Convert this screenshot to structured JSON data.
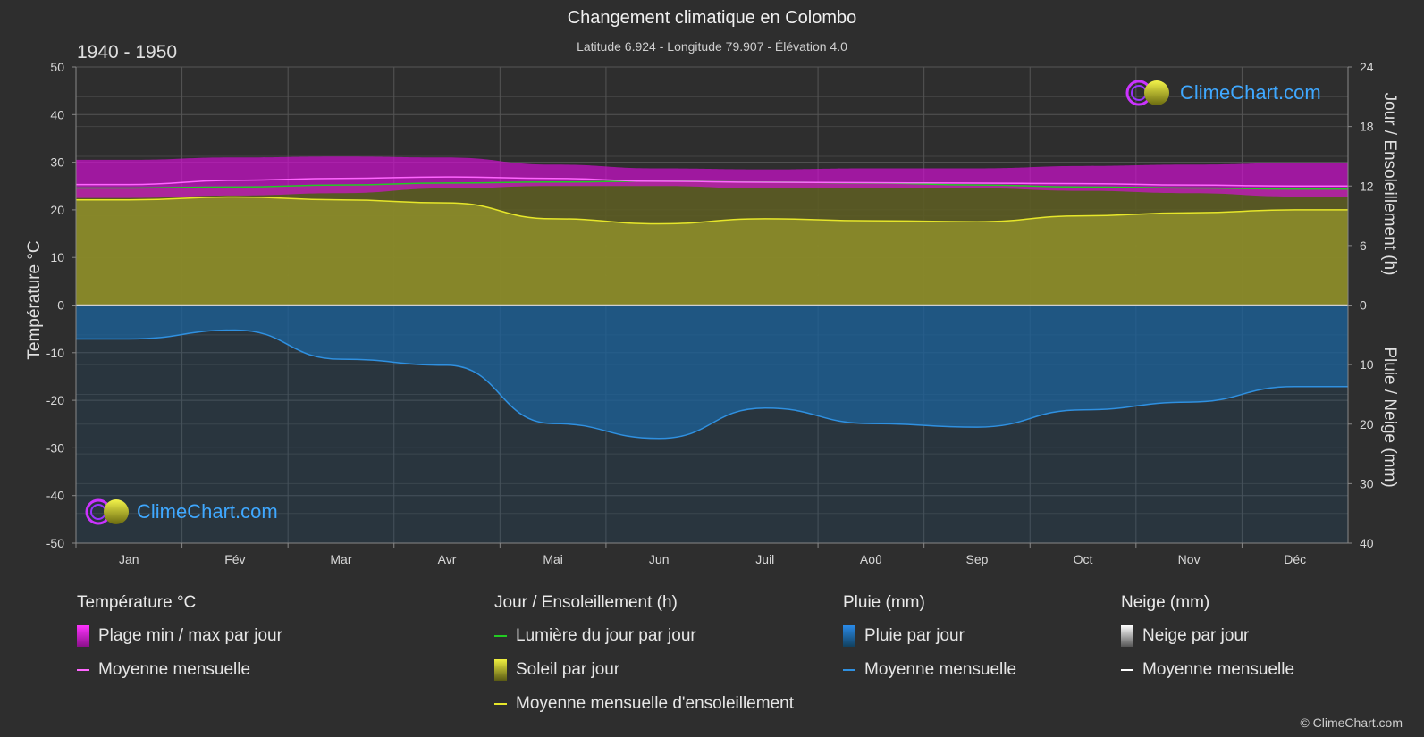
{
  "header": {
    "title": "Changement climatique en Colombo",
    "subtitle": "Latitude 6.924 - Longitude 79.907 - Élévation 4.0",
    "period": "1940 - 1950"
  },
  "logo": {
    "text": "ClimeChart.com"
  },
  "copyright": "© ClimeChart.com",
  "colors": {
    "background": "#2e2e2e",
    "temp_range": "#d010d0",
    "temp_mean": "#ff66ff",
    "daylight": "#22cc22",
    "sunshine_fill": "#8c8c2a",
    "sunshine_mean": "#e6e62a",
    "rain_fill": "#1e6aa8",
    "rain_mean": "#2f90e0",
    "snow_mean": "#ffffff"
  },
  "chart_data": {
    "type": "area",
    "months": [
      "Jan",
      "Fév",
      "Mar",
      "Avr",
      "Mai",
      "Jun",
      "Juil",
      "Aoû",
      "Sep",
      "Oct",
      "Nov",
      "Déc"
    ],
    "axes": {
      "left": {
        "label": "Température °C",
        "range": [
          -50,
          50
        ],
        "ticks": [
          "50",
          "40",
          "30",
          "20",
          "10",
          "0",
          "-10",
          "-20",
          "-30",
          "-40",
          "-50"
        ]
      },
      "right_top": {
        "label": "Jour / Ensoleillement (h)",
        "range": [
          0,
          24
        ],
        "ticks": [
          "24",
          "18",
          "12",
          "6",
          "0"
        ]
      },
      "right_bottom": {
        "label": "Pluie / Neige (mm)",
        "range": [
          0,
          40
        ],
        "ticks": [
          "0",
          "10",
          "20",
          "30",
          "40"
        ]
      }
    },
    "grid": true,
    "series": {
      "temp_max_daily": [
        30.5,
        31.0,
        31.2,
        31.0,
        29.5,
        28.7,
        28.5,
        28.7,
        28.7,
        29.2,
        29.5,
        29.8
      ],
      "temp_min_daily": [
        22.5,
        23.0,
        23.5,
        24.5,
        25.0,
        25.0,
        24.5,
        24.5,
        24.5,
        24.0,
        23.5,
        22.8
      ],
      "temp_mean_monthly": [
        25.3,
        26.2,
        26.6,
        26.9,
        26.6,
        26.0,
        25.8,
        25.7,
        25.6,
        25.5,
        25.2,
        25.0
      ],
      "daylight_hours": [
        11.8,
        11.9,
        12.1,
        12.3,
        12.4,
        12.5,
        12.4,
        12.3,
        12.1,
        11.9,
        11.8,
        11.7
      ],
      "sunshine_hours_monthly": [
        10.6,
        10.9,
        10.6,
        10.3,
        8.7,
        8.2,
        8.7,
        8.5,
        8.4,
        9.0,
        9.3,
        9.6
      ],
      "rain_mm_monthly": [
        5.7,
        4.2,
        9.1,
        10.1,
        19.9,
        22.4,
        17.3,
        19.9,
        20.5,
        17.6,
        16.3,
        13.7
      ],
      "snow_mm_monthly": [
        0,
        0,
        0,
        0,
        0,
        0,
        0,
        0,
        0,
        0,
        0,
        0
      ]
    }
  },
  "legend": {
    "temperature": {
      "title": "Température °C",
      "items": [
        "Plage min / max par jour",
        "Moyenne mensuelle"
      ]
    },
    "sun": {
      "title": "Jour / Ensoleillement (h)",
      "items": [
        "Lumière du jour par jour",
        "Soleil par jour",
        "Moyenne mensuelle d'ensoleillement"
      ]
    },
    "rain": {
      "title": "Pluie (mm)",
      "items": [
        "Pluie par jour",
        "Moyenne mensuelle"
      ]
    },
    "snow": {
      "title": "Neige (mm)",
      "items": [
        "Neige par jour",
        "Moyenne mensuelle"
      ]
    }
  }
}
